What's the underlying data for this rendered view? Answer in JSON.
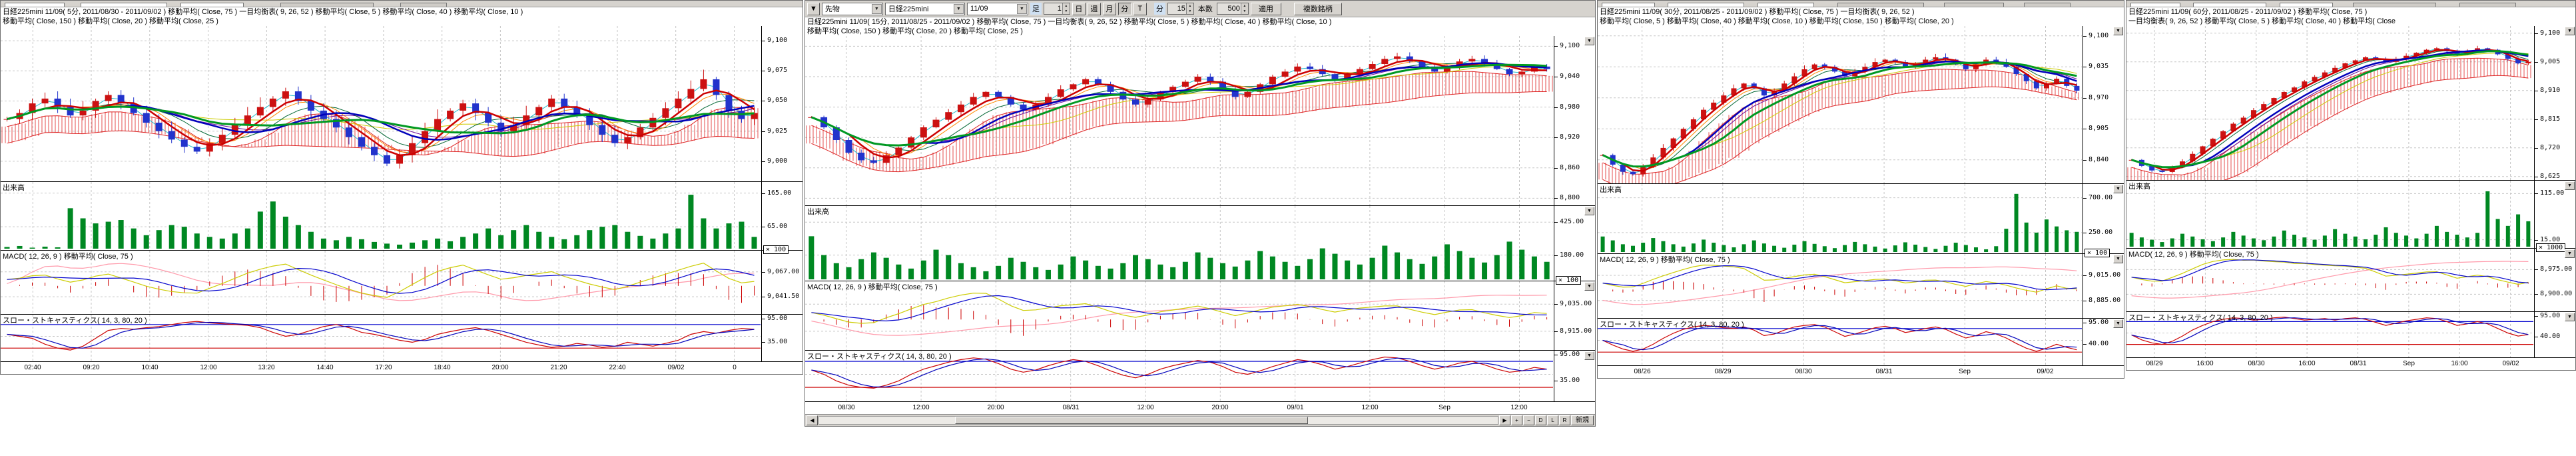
{
  "icons": {
    "down_arrow": "▼",
    "up_arrow": "▲",
    "collapse": "▼",
    "left_arrow": "◀",
    "right_arrow": "▶"
  },
  "toolbar": {
    "category": "先物",
    "symbol": "日経225mini",
    "contract": "11/09",
    "bar_label": "足",
    "bar_value": "1",
    "period_day": "日",
    "period_week": "週",
    "period_month": "月",
    "period_min": "分",
    "period_tick": "T",
    "minutes_label": "分",
    "minutes_value": "15",
    "count_label": "本数",
    "count_value": "500",
    "apply_label": "適用",
    "multi_label": "複数銘柄"
  },
  "scroll": {
    "buttons": [
      "+",
      "−",
      "D",
      "L",
      "R",
      "新規"
    ]
  },
  "panels": [
    {
      "header_line1": "日経225mini 11/09( 5分, 2011/08/30 - 2011/09/02 )  移動平均( Close, 75 )  一目均衡表( 9, 26, 52 )  移動平均( Close, 5 )  移動平均( Close, 40 )  移動平均( Close, 10 )",
      "header_line2": "移動平均( Close, 150 )  移動平均( Close, 20 )  移動平均( Close, 25 )",
      "volume_label": "出来高",
      "macd_label": "MACD( 12, 26, 9 )  移動平均( Close, 75 )",
      "stoch_label": "スロー・ストキャスティクス( 14, 3, 80, 20 )",
      "scales": {
        "price": [
          "9,100",
          "9,075",
          "9,050",
          "9,025",
          "9,000"
        ],
        "volume": [
          "165.00",
          "65.00"
        ],
        "multiplier": "× 100",
        "macd": [
          "9,067.00",
          "9,041.50"
        ],
        "stoch": [
          "95.00",
          "35.00"
        ]
      }
    },
    {
      "header_line1": "日経225mini 11/09( 15分, 2011/08/25 - 2011/09/02 )  移動平均( Close, 75 )  一目均衡表( 9, 26, 52 )  移動平均( Close, 5 )  移動平均( Close, 40 )  移動平均( Close, 10 )",
      "header_line2": "移動平均( Close, 150 )  移動平均( Close, 20 )  移動平均( Close, 25 )",
      "volume_label": "出来高",
      "macd_label": "MACD( 12, 26, 9 )  移動平均( Close, 75 )",
      "stoch_label": "スロー・ストキャスティクス( 14, 3, 80, 20 )",
      "scales": {
        "price": [
          "9,100",
          "9,040",
          "8,980",
          "8,920",
          "8,860",
          "8,800"
        ],
        "volume": [
          "425.00",
          "180.00"
        ],
        "multiplier": "× 100",
        "macd": [
          "9,035.00",
          "8,915.00"
        ],
        "stoch": [
          "95.00",
          "35.00"
        ]
      }
    },
    {
      "header_line1": "日経225mini 11/09( 30分, 2011/08/25 - 2011/09/02 )  移動平均( Close, 75 )  一目均衡表( 9, 26, 52 )",
      "header_line2": "移動平均( Close, 5 )  移動平均( Close, 40 )  移動平均( Close, 10 )  移動平均( Close, 150 )  移動平均( Close, 20 )",
      "volume_label": "出来高",
      "macd_label": "MACD( 12, 26, 9 )  移動平均( Close, 75 )",
      "stoch_label": "スロー・ストキャスティクス( 14, 3, 80, 20 )",
      "scales": {
        "price": [
          "9,100",
          "9,035",
          "8,970",
          "8,905",
          "8,840"
        ],
        "volume": [
          "700.00",
          "250.00"
        ],
        "multiplier": "× 100",
        "macd": [
          "9,015.00",
          "8,885.00"
        ],
        "stoch": [
          "95.00",
          "40.00"
        ]
      }
    },
    {
      "header_line1": "日経225mini 11/09( 60分, 2011/08/25 - 2011/09/02 )  移動平均( Close, 75 )",
      "header_line2": "一目均衡表( 9, 26, 52 )  移動平均( Close, 5 )  移動平均( Close, 40 )  移動平均( Close",
      "volume_label": "出来高",
      "macd_label": "MACD( 12, 26, 9 )  移動平均( Close, 75 )",
      "stoch_label": "スロー・ストキャスティクス( 14, 3, 80, 20 )",
      "scales": {
        "price": [
          "9,100",
          "9,005",
          "8,910",
          "8,815",
          "8,720",
          "8,625"
        ],
        "volume": [
          "115.00",
          "15.00"
        ],
        "multiplier": "× 1000",
        "macd": [
          "8,975.00",
          "8,900.00"
        ],
        "stoch": [
          "95.00",
          "40.00"
        ]
      }
    }
  ],
  "chart_data": [
    {
      "type": "candlestick",
      "timeframe": "5min",
      "x_labels": [
        "02:40",
        "09:20",
        "10:40",
        "12:00",
        "13:20",
        "14:40",
        "17:20",
        "18:40",
        "20:00",
        "21:20",
        "22:40",
        "09/02",
        "0"
      ],
      "price_range": [
        8985,
        9110
      ],
      "price_ticks": [
        9100,
        9075,
        9050,
        9025,
        9000
      ],
      "close": [
        9035,
        9040,
        9048,
        9052,
        9045,
        9038,
        9042,
        9050,
        9055,
        9048,
        9040,
        9032,
        9025,
        9018,
        9012,
        9008,
        9015,
        9022,
        9030,
        9038,
        9045,
        9052,
        9058,
        9050,
        9042,
        9035,
        9028,
        9020,
        9012,
        9005,
        8998,
        9005,
        9015,
        9025,
        9035,
        9042,
        9048,
        9040,
        9032,
        9025,
        9030,
        9038,
        9045,
        9052,
        9045,
        9038,
        9030,
        9022,
        9015,
        9020,
        9028,
        9036,
        9044,
        9052,
        9060,
        9068,
        9055,
        9042,
        9035,
        9040
      ],
      "volume": [
        5,
        8,
        3,
        6,
        4,
        120,
        90,
        75,
        80,
        85,
        60,
        40,
        55,
        70,
        65,
        45,
        35,
        30,
        45,
        60,
        110,
        140,
        95,
        70,
        50,
        30,
        25,
        35,
        28,
        20,
        15,
        12,
        18,
        25,
        30,
        22,
        35,
        45,
        60,
        40,
        55,
        70,
        50,
        35,
        28,
        40,
        55,
        65,
        70,
        50,
        38,
        30,
        45,
        60,
        160,
        90,
        60,
        75,
        80,
        35
      ],
      "volume_max": 180,
      "volume_ticks": [
        165,
        65
      ],
      "stoch_k": [
        55,
        50,
        45,
        30,
        20,
        15,
        25,
        45,
        65,
        70,
        68,
        72,
        75,
        80,
        85,
        88,
        84,
        82,
        80,
        78,
        72,
        60,
        50,
        55,
        65,
        75,
        80,
        72,
        60,
        55,
        48,
        40,
        35,
        42,
        55,
        62,
        68,
        72,
        65,
        55,
        45,
        35,
        28,
        22,
        25,
        32,
        28,
        22,
        25,
        35,
        30,
        25,
        32,
        40,
        55,
        62,
        58,
        65,
        70,
        68
      ],
      "stoch_ticks": [
        95,
        35
      ],
      "stoch_bands": [
        80,
        20
      ]
    },
    {
      "type": "candlestick",
      "timeframe": "15min",
      "x_labels": [
        "08/30",
        "12:00",
        "20:00",
        "08/31",
        "12:00",
        "20:00",
        "09/01",
        "12:00",
        "Sep",
        "12:00"
      ],
      "price_range": [
        8790,
        9115
      ],
      "price_ticks": [
        9100,
        9040,
        8980,
        8920,
        8860,
        8800
      ],
      "close": [
        8960,
        8940,
        8915,
        8890,
        8875,
        8870,
        8885,
        8900,
        8920,
        8940,
        8955,
        8970,
        8985,
        9000,
        9010,
        9000,
        8985,
        8975,
        8985,
        9000,
        9015,
        9025,
        9035,
        9025,
        9010,
        8995,
        8985,
        8995,
        9010,
        9020,
        9030,
        9040,
        9030,
        9015,
        9000,
        9010,
        9025,
        9040,
        9050,
        9060,
        9055,
        9045,
        9035,
        9045,
        9055,
        9065,
        9075,
        9080,
        9070,
        9060,
        9050,
        9060,
        9070,
        9075,
        9065,
        9055,
        9045,
        9050,
        9060,
        9055
      ],
      "volume": [
        320,
        180,
        120,
        90,
        150,
        200,
        160,
        110,
        80,
        140,
        220,
        180,
        120,
        90,
        60,
        100,
        160,
        130,
        90,
        70,
        110,
        170,
        140,
        100,
        80,
        120,
        180,
        150,
        110,
        90,
        130,
        200,
        160,
        120,
        95,
        140,
        210,
        170,
        130,
        100,
        150,
        230,
        190,
        140,
        110,
        160,
        250,
        200,
        150,
        115,
        170,
        260,
        210,
        160,
        125,
        180,
        280,
        220,
        170,
        130
      ],
      "volume_max": 500,
      "volume_ticks": [
        425,
        180
      ],
      "stoch_k": [
        60,
        50,
        35,
        25,
        20,
        18,
        25,
        35,
        50,
        62,
        70,
        78,
        84,
        88,
        85,
        75,
        62,
        55,
        60,
        70,
        78,
        84,
        80,
        70,
        58,
        48,
        42,
        50,
        62,
        70,
        76,
        82,
        78,
        68,
        55,
        50,
        58,
        68,
        76,
        84,
        80,
        72,
        62,
        68,
        76,
        84,
        90,
        88,
        80,
        70,
        62,
        68,
        76,
        80,
        72,
        62,
        55,
        58,
        66,
        62
      ],
      "stoch_ticks": [
        95,
        35
      ],
      "stoch_bands": [
        80,
        20
      ]
    },
    {
      "type": "candlestick",
      "timeframe": "30min",
      "x_labels": [
        "08/26",
        "08/29",
        "08/30",
        "08/31",
        "Sep",
        "09/02"
      ],
      "price_range": [
        8795,
        9115
      ],
      "price_ticks": [
        9100,
        9035,
        8970,
        8905,
        8840
      ],
      "close": [
        8850,
        8830,
        8815,
        8810,
        8825,
        8845,
        8865,
        8885,
        8905,
        8925,
        8945,
        8960,
        8975,
        8990,
        9000,
        8990,
        8975,
        8985,
        9000,
        9015,
        9030,
        9040,
        9035,
        9025,
        9015,
        9025,
        9035,
        9045,
        9050,
        9045,
        9035,
        9040,
        9050,
        9055,
        9050,
        9040,
        9030,
        9040,
        9050,
        9045,
        9035,
        9020,
        9005,
        8990,
        9000,
        9010,
        8995,
        8985
      ],
      "volume": [
        200,
        150,
        100,
        80,
        120,
        180,
        140,
        100,
        70,
        110,
        160,
        120,
        90,
        60,
        100,
        150,
        110,
        80,
        55,
        95,
        140,
        105,
        75,
        50,
        90,
        130,
        100,
        70,
        45,
        85,
        125,
        95,
        65,
        40,
        80,
        120,
        90,
        60,
        35,
        75,
        300,
        750,
        380,
        250,
        420,
        330,
        280,
        260
      ],
      "volume_max": 800,
      "volume_ticks": [
        700,
        250
      ],
      "stoch_k": [
        50,
        38,
        28,
        22,
        28,
        40,
        55,
        68,
        78,
        84,
        88,
        86,
        82,
        80,
        84,
        76,
        62,
        66,
        76,
        84,
        88,
        90,
        84,
        72,
        60,
        66,
        74,
        82,
        86,
        80,
        70,
        74,
        80,
        84,
        78,
        66,
        56,
        62,
        72,
        66,
        56,
        42,
        30,
        22,
        30,
        40,
        32,
        26
      ],
      "stoch_ticks": [
        95,
        40
      ],
      "stoch_bands": [
        80,
        20
      ]
    },
    {
      "type": "candlestick",
      "timeframe": "60min",
      "x_labels": [
        "08/29",
        "16:00",
        "08/30",
        "16:00",
        "08/31",
        "Sep",
        "16:00",
        "09/02"
      ],
      "price_range": [
        8620,
        9115
      ],
      "price_ticks": [
        9100,
        9005,
        8910,
        8815,
        8720,
        8625
      ],
      "close": [
        8680,
        8660,
        8645,
        8640,
        8655,
        8675,
        8700,
        8725,
        8750,
        8775,
        8800,
        8820,
        8845,
        8865,
        8885,
        8905,
        8920,
        8940,
        8955,
        8970,
        8985,
        9000,
        9010,
        9020,
        9015,
        9005,
        9015,
        9025,
        9035,
        9045,
        9050,
        9040,
        9030,
        9040,
        9050,
        9045,
        9030,
        9015,
        9000,
        9005
      ],
      "volume": [
        30,
        20,
        15,
        10,
        18,
        28,
        22,
        16,
        12,
        20,
        32,
        24,
        18,
        14,
        22,
        35,
        26,
        20,
        15,
        24,
        38,
        28,
        22,
        16,
        26,
        42,
        30,
        24,
        18,
        28,
        45,
        32,
        26,
        20,
        30,
        120,
        60,
        45,
        70,
        55
      ],
      "volume_max": 130,
      "volume_ticks": [
        115,
        15
      ],
      "stoch_k": [
        45,
        32,
        24,
        20,
        28,
        42,
        58,
        70,
        80,
        86,
        90,
        88,
        84,
        86,
        90,
        92,
        88,
        84,
        86,
        88,
        84,
        88,
        90,
        86,
        78,
        70,
        76,
        82,
        86,
        90,
        88,
        80,
        70,
        74,
        80,
        74,
        62,
        50,
        42,
        46
      ],
      "stoch_ticks": [
        95,
        40
      ],
      "stoch_bands": [
        80,
        20
      ]
    }
  ]
}
